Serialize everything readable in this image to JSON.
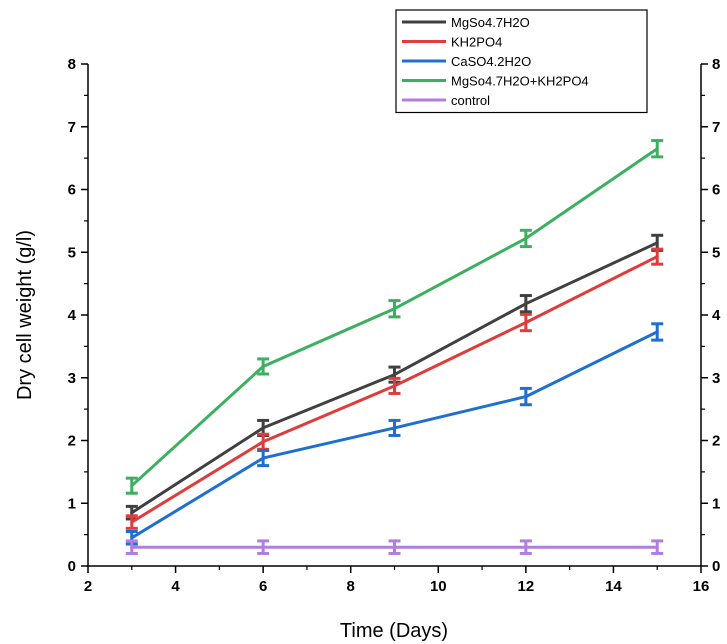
{
  "chart_data": {
    "type": "line",
    "title": "",
    "xlabel": "Time (Days)",
    "ylabel": "Dry cell weight (g/l)",
    "xlim": [
      2,
      16
    ],
    "ylim": [
      0,
      8
    ],
    "x_ticks": [
      2,
      4,
      6,
      8,
      10,
      12,
      14,
      16
    ],
    "y_ticks": [
      0,
      1,
      2,
      3,
      4,
      5,
      6,
      7,
      8
    ],
    "right_y_ticks": [
      0,
      1,
      2,
      3,
      4,
      5,
      6,
      7,
      8
    ],
    "grid": false,
    "legend_position": "top-right",
    "x": [
      3,
      6,
      9,
      12,
      15
    ],
    "series": [
      {
        "name": "MgSo4.7H2O",
        "color": "#404040",
        "values": [
          0.85,
          2.2,
          3.05,
          4.18,
          5.15
        ],
        "errors": [
          0.1,
          0.12,
          0.12,
          0.13,
          0.12
        ]
      },
      {
        "name": "KH2PO4",
        "color": "#e03c3c",
        "values": [
          0.7,
          1.98,
          2.87,
          3.88,
          4.93
        ],
        "errors": [
          0.1,
          0.12,
          0.12,
          0.13,
          0.12
        ]
      },
      {
        "name": "CaSO4.2H2O",
        "color": "#1f6fd0",
        "values": [
          0.45,
          1.72,
          2.2,
          2.7,
          3.73
        ],
        "errors": [
          0.1,
          0.12,
          0.12,
          0.13,
          0.13
        ]
      },
      {
        "name": "MgSo4.7H2O+KH2PO4",
        "color": "#3cb060",
        "values": [
          1.28,
          3.18,
          4.1,
          5.22,
          6.65
        ],
        "errors": [
          0.12,
          0.12,
          0.13,
          0.13,
          0.13
        ]
      },
      {
        "name": "control",
        "color": "#b07ee0",
        "values": [
          0.3,
          0.3,
          0.3,
          0.3,
          0.3
        ],
        "errors": [
          0.1,
          0.1,
          0.1,
          0.1,
          0.1
        ]
      }
    ]
  }
}
